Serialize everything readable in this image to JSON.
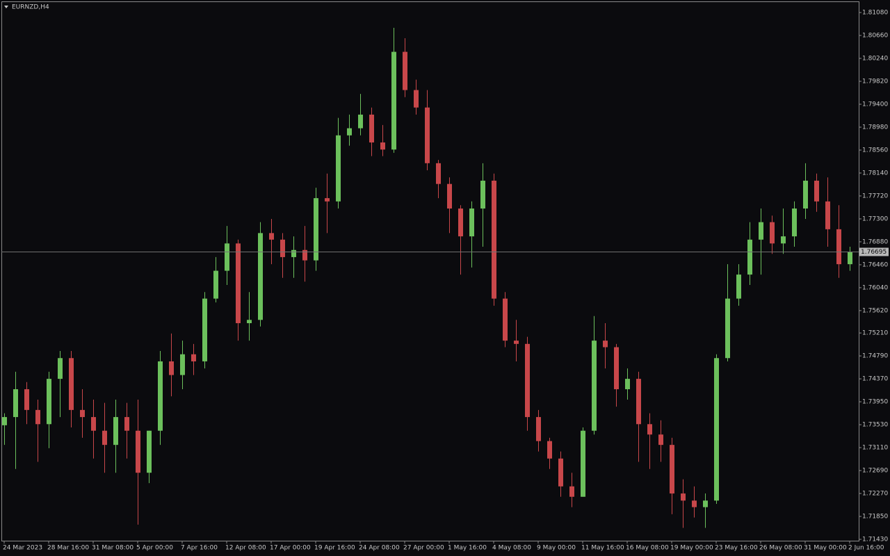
{
  "chart_data": {
    "type": "candlestick",
    "title": "EURNZD,H4",
    "categories": [
      "24 Mar 2023",
      null,
      null,
      null,
      "28 Mar 16:00",
      null,
      null,
      null,
      "31 Mar 08:00",
      null,
      null,
      null,
      "5 Apr 00:00",
      null,
      null,
      null,
      "7 Apr 16:00",
      null,
      null,
      null,
      "12 Apr 08:00",
      null,
      null,
      null,
      "17 Apr 00:00",
      null,
      null,
      null,
      "19 Apr 16:00",
      null,
      null,
      null,
      "24 Apr 08:00",
      null,
      null,
      null,
      "27 Apr 00:00",
      null,
      null,
      null,
      "1 May 16:00",
      null,
      null,
      null,
      "4 May 08:00",
      null,
      null,
      null,
      "9 May 00:00",
      null,
      null,
      null,
      "11 May 16:00",
      null,
      null,
      null,
      "16 May 08:00",
      null,
      null,
      null,
      "19 May 00:00",
      null,
      null,
      null,
      "23 May 16:00",
      null,
      null,
      null,
      "26 May 08:00",
      null,
      null,
      null,
      "31 May 00:00",
      null,
      null,
      null,
      "2 Jun 16:00"
    ],
    "open": [
      1.7352,
      1.7367,
      1.7418,
      1.738,
      1.7354,
      1.7437,
      1.7475,
      1.738,
      1.7367,
      1.7342,
      1.7316,
      1.7367,
      1.7342,
      1.7265,
      1.7342,
      1.7469,
      1.7444,
      1.7482,
      1.7469,
      1.7584,
      1.7635,
      1.7685,
      1.7539,
      1.7545,
      1.7704,
      1.7692,
      1.766,
      1.7673,
      1.7654,
      1.7768,
      1.7762,
      1.7883,
      1.7896,
      1.7921,
      1.787,
      1.7857,
      1.8036,
      1.7966,
      1.7934,
      1.7832,
      1.7794,
      1.7749,
      1.7698,
      1.7749,
      1.78,
      1.7584,
      1.7507,
      1.7501,
      1.7367,
      1.7323,
      1.7291,
      1.724,
      1.7221,
      1.7342,
      1.7507,
      1.7495,
      1.7418,
      1.7437,
      1.7354,
      1.7335,
      1.7316,
      1.7227,
      1.7214,
      1.7202,
      1.7214,
      1.7475,
      1.7584,
      1.7628,
      1.7692,
      1.7724,
      1.7685,
      1.7698,
      1.7749,
      1.78,
      1.7762,
      1.7711,
      1.7647
    ],
    "high": [
      1.7374,
      1.745,
      1.7431,
      1.7399,
      1.745,
      1.7488,
      1.7488,
      1.7418,
      1.7399,
      1.7393,
      1.7399,
      1.7393,
      1.7399,
      1.7342,
      1.7488,
      1.752,
      1.7507,
      1.7501,
      1.7596,
      1.766,
      1.7717,
      1.7692,
      1.7596,
      1.7724,
      1.773,
      1.7704,
      1.7698,
      1.7717,
      1.7787,
      1.7813,
      1.7915,
      1.7921,
      1.7959,
      1.7934,
      1.7902,
      1.808,
      1.8061,
      1.7985,
      1.7966,
      1.7838,
      1.7806,
      1.7755,
      1.7762,
      1.7832,
      1.7813,
      1.7596,
      1.7545,
      1.7514,
      1.738,
      1.7329,
      1.7304,
      1.7265,
      1.7348,
      1.7552,
      1.7539,
      1.7501,
      1.7456,
      1.745,
      1.7374,
      1.7361,
      1.7329,
      1.7253,
      1.724,
      1.7227,
      1.7482,
      1.7647,
      1.7647,
      1.7724,
      1.7749,
      1.7736,
      1.7749,
      1.7762,
      1.7832,
      1.7813,
      1.7806,
      1.7755,
      1.7679
    ],
    "low": [
      1.7316,
      1.7272,
      1.7354,
      1.7285,
      1.731,
      1.7367,
      1.7348,
      1.7329,
      1.7291,
      1.7265,
      1.7265,
      1.7291,
      1.717,
      1.7246,
      1.7316,
      1.7405,
      1.7418,
      1.7444,
      1.7456,
      1.7577,
      1.7609,
      1.7507,
      1.7507,
      1.7533,
      1.7647,
      1.7622,
      1.7622,
      1.7615,
      1.7635,
      1.7704,
      1.7749,
      1.7864,
      1.7883,
      1.7845,
      1.7845,
      1.7851,
      1.7953,
      1.7921,
      1.7819,
      1.7768,
      1.7704,
      1.7628,
      1.7641,
      1.7679,
      1.7571,
      1.7495,
      1.7469,
      1.7342,
      1.7304,
      1.7272,
      1.7221,
      1.7202,
      1.7221,
      1.7335,
      1.7456,
      1.7386,
      1.7399,
      1.7285,
      1.7272,
      1.7285,
      1.7189,
      1.7164,
      1.7183,
      1.7164,
      1.7208,
      1.7469,
      1.7571,
      1.7609,
      1.7628,
      1.7666,
      1.7666,
      1.7679,
      1.773,
      1.7743,
      1.7679,
      1.7622,
      1.7635
    ],
    "close": [
      1.7367,
      1.7418,
      1.738,
      1.7354,
      1.7437,
      1.7475,
      1.738,
      1.7367,
      1.7342,
      1.7316,
      1.7367,
      1.7342,
      1.7265,
      1.7342,
      1.7469,
      1.7444,
      1.7482,
      1.7469,
      1.7584,
      1.7635,
      1.7685,
      1.7539,
      1.7545,
      1.7704,
      1.7692,
      1.766,
      1.7673,
      1.7654,
      1.7768,
      1.7762,
      1.7883,
      1.7896,
      1.7921,
      1.787,
      1.7857,
      1.8036,
      1.7966,
      1.7934,
      1.7832,
      1.7794,
      1.7749,
      1.7698,
      1.7749,
      1.78,
      1.7584,
      1.7507,
      1.7501,
      1.7367,
      1.7323,
      1.7291,
      1.724,
      1.7221,
      1.7342,
      1.7507,
      1.7495,
      1.7418,
      1.7437,
      1.7354,
      1.7335,
      1.7316,
      1.7227,
      1.7214,
      1.7202,
      1.7214,
      1.7475,
      1.7584,
      1.7628,
      1.7692,
      1.7724,
      1.7685,
      1.7698,
      1.7749,
      1.78,
      1.7762,
      1.7711,
      1.7647,
      1.767
    ],
    "up_color": "#6cc05c",
    "down_color": "#c8474a",
    "last_price": 1.76695,
    "ylim": [
      1.71405,
      1.81284
    ],
    "yticks": [
      {
        "value": 1.8108,
        "label": "1.81080"
      },
      {
        "value": 1.8066,
        "label": "1.80660"
      },
      {
        "value": 1.8024,
        "label": "1.80240"
      },
      {
        "value": 1.7982,
        "label": "1.79820"
      },
      {
        "value": 1.794,
        "label": "1.79400"
      },
      {
        "value": 1.7898,
        "label": "1.78980"
      },
      {
        "value": 1.7856,
        "label": "1.78560"
      },
      {
        "value": 1.7814,
        "label": "1.78140"
      },
      {
        "value": 1.7772,
        "label": "1.77720"
      },
      {
        "value": 1.773,
        "label": "1.77300"
      },
      {
        "value": 1.7688,
        "label": "1.76880"
      },
      {
        "value": 1.7646,
        "label": "1.76460"
      },
      {
        "value": 1.7604,
        "label": "1.76040"
      },
      {
        "value": 1.7562,
        "label": "1.75620"
      },
      {
        "value": 1.7521,
        "label": "1.75210"
      },
      {
        "value": 1.7479,
        "label": "1.74790"
      },
      {
        "value": 1.7437,
        "label": "1.74370"
      },
      {
        "value": 1.7395,
        "label": "1.73950"
      },
      {
        "value": 1.7353,
        "label": "1.73530"
      },
      {
        "value": 1.7311,
        "label": "1.73110"
      },
      {
        "value": 1.7269,
        "label": "1.72690"
      },
      {
        "value": 1.7227,
        "label": "1.72270"
      },
      {
        "value": 1.7185,
        "label": "1.71850"
      },
      {
        "value": 1.7143,
        "label": "1.71430"
      }
    ],
    "grid": false
  }
}
